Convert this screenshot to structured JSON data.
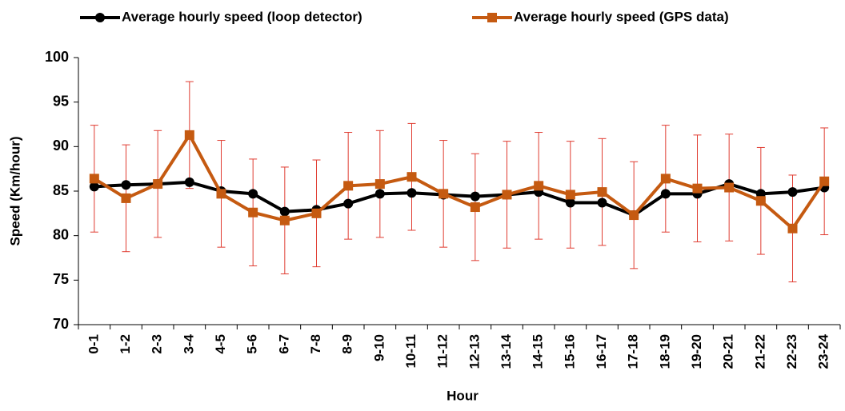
{
  "chart_data": {
    "type": "line",
    "x_label": "Hour",
    "y_label": "Speed (Km/hour)",
    "categories": [
      "0-1",
      "1-2",
      "2-3",
      "3-4",
      "4-5",
      "5-6",
      "6-7",
      "7-8",
      "8-9",
      "9-10",
      "10-11",
      "11-12",
      "12-13",
      "13-14",
      "14-15",
      "15-16",
      "16-17",
      "17-18",
      "18-19",
      "19-20",
      "20-21",
      "21-22",
      "22-23",
      "23-24"
    ],
    "series": [
      {
        "name": "Average hourly speed (loop detector)",
        "color": "#000000",
        "marker": "circle",
        "values": [
          85.5,
          85.7,
          85.8,
          86.0,
          85.0,
          84.7,
          82.7,
          82.9,
          83.6,
          84.7,
          84.8,
          84.6,
          84.4,
          84.6,
          84.9,
          83.7,
          83.7,
          82.3,
          84.7,
          84.7,
          85.8,
          84.7,
          84.9,
          85.4
        ]
      },
      {
        "name": "Average hourly speed (GPS data)",
        "color": "#c55a11",
        "marker": "square",
        "error_color": "#e03c31",
        "values": [
          86.4,
          84.2,
          85.8,
          91.3,
          84.7,
          82.6,
          81.7,
          82.5,
          85.6,
          85.8,
          86.6,
          84.7,
          83.2,
          84.6,
          85.6,
          84.6,
          84.9,
          82.3,
          86.4,
          85.3,
          85.4,
          83.9,
          80.8,
          86.1
        ],
        "errors": [
          6,
          6,
          6,
          6,
          6,
          6,
          6,
          6,
          6,
          6,
          6,
          6,
          6,
          6,
          6,
          6,
          6,
          6,
          6,
          6,
          6,
          6,
          6,
          6
        ]
      }
    ],
    "ylim": [
      70,
      100
    ],
    "yticks": [
      70,
      75,
      80,
      85,
      90,
      95,
      100
    ],
    "grid": false
  }
}
